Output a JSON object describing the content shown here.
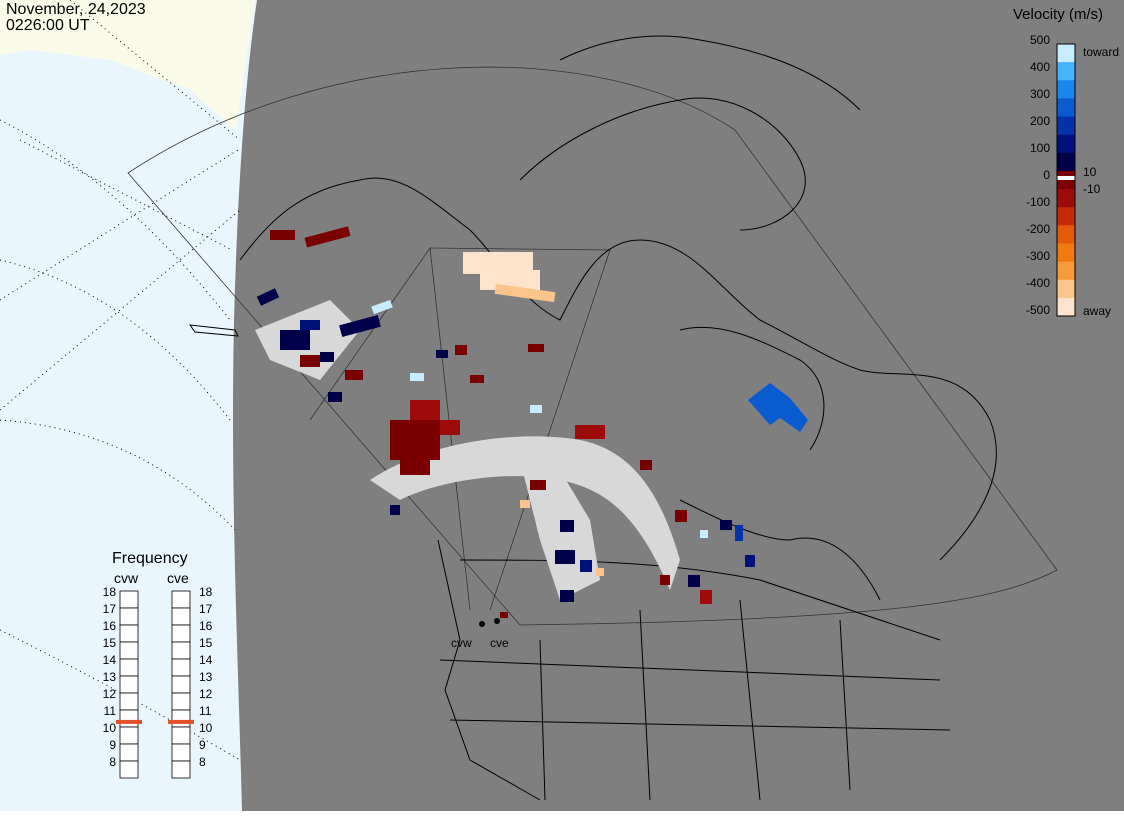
{
  "date_line": "November, 24,2023",
  "time_line": "0226:00 UT",
  "colorbar": {
    "title": "Velocity (m/s)",
    "ticks": [
      "500",
      "400",
      "300",
      "200",
      "100",
      "0",
      "-100",
      "-200",
      "-300",
      "-400",
      "-500"
    ],
    "inner_ticks": [
      "10",
      "-10"
    ],
    "toward_label": "toward",
    "away_label": "away",
    "colors": [
      "#fde3cc",
      "#fbc48a",
      "#f79a3c",
      "#f07a10",
      "#e55a08",
      "#c52a05",
      "#9c0a0a",
      "#7a0000",
      "#00004a",
      "#00127a",
      "#0432a8",
      "#0a5bd0",
      "#1a86ee",
      "#47b4ff",
      "#c8ecff"
    ]
  },
  "frequency": {
    "title": "Frequency",
    "radars": [
      "cvw",
      "cve"
    ],
    "scale": [
      "18",
      "17",
      "16",
      "15",
      "14",
      "13",
      "12",
      "11",
      "10",
      "9",
      "8"
    ],
    "cvw_freq_mhz": 10.8,
    "cve_freq_mhz": 10.8
  },
  "sites": [
    "cvw",
    "cve"
  ],
  "map_colors": {
    "land": "#7f7f7f",
    "offmap": "#e9f6fd",
    "sunlit": "#fbfbea",
    "ground_scatter": "#d8d8d8"
  }
}
